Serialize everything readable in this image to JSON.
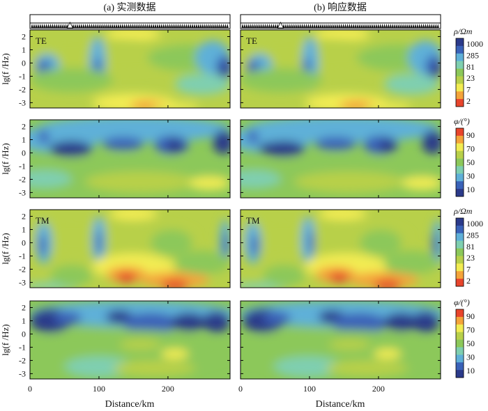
{
  "figure": {
    "panel_a_title": "(a) 实测数据",
    "panel_b_title": "(b) 响应数据",
    "ylabel": "lg(f /Hz)",
    "xlabel": "Distance/km"
  },
  "chart_data": {
    "type": "heatmap",
    "description_axes": {
      "x": {
        "label": "Distance/km",
        "range": [
          0,
          290
        ],
        "ticks": [
          0,
          100,
          200
        ],
        "tick_labels": [
          "0",
          "100",
          "200"
        ]
      },
      "y": {
        "label": "lg(f /Hz)",
        "range": [
          -3.4,
          2.5
        ],
        "ticks": [
          2,
          1,
          0,
          -1,
          -2,
          -3
        ],
        "tick_labels": [
          "2",
          "1",
          "0",
          "-1",
          "-2",
          "-3"
        ]
      }
    },
    "station_marker_km": 58,
    "columns": [
      {
        "key": "observed",
        "title": "(a) 实测数据"
      },
      {
        "key": "response",
        "title": "(b) 响应数据"
      }
    ],
    "rows": [
      {
        "mode": "TE",
        "quantity": "resistivity",
        "colorbar": "rho"
      },
      {
        "mode": "TE",
        "quantity": "phase",
        "colorbar": "phi"
      },
      {
        "mode": "TM",
        "quantity": "resistivity",
        "colorbar": "rho"
      },
      {
        "mode": "TM",
        "quantity": "phase",
        "colorbar": "phi"
      }
    ],
    "colorbars": {
      "rho": {
        "title": "ρ/Ωm",
        "tick_labels": [
          "1000",
          "285",
          "81",
          "23",
          "7",
          "2"
        ],
        "colors": [
          "#2b3a8a",
          "#3a62b8",
          "#5fb0d8",
          "#7fcfb0",
          "#8cc85a",
          "#b8d04a",
          "#f2ec52",
          "#f4a43a",
          "#e8452c"
        ]
      },
      "phi": {
        "title": "φ/(°)",
        "tick_labels": [
          "90",
          "70",
          "50",
          "30",
          "10"
        ],
        "colors": [
          "#e8452c",
          "#f4a43a",
          "#f2ec52",
          "#b8d04a",
          "#8cc85a",
          "#7fcfb0",
          "#5fb0d8",
          "#3a62b8",
          "#2b3a8a"
        ]
      }
    }
  }
}
